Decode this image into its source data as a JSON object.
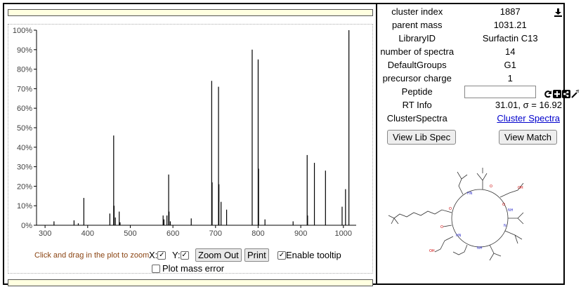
{
  "chart_data": {
    "type": "bar",
    "title": "",
    "xlabel": "",
    "ylabel": "",
    "xlim": [
      280,
      1030
    ],
    "ylim": [
      0,
      100
    ],
    "xticks": [
      300,
      400,
      500,
      600,
      700,
      800,
      900,
      1000
    ],
    "xtick_labels": [
      "300",
      "400",
      "500",
      "600",
      "700",
      "800",
      "900",
      "1000"
    ],
    "yticks": [
      0,
      10,
      20,
      30,
      40,
      50,
      60,
      70,
      80,
      90,
      100
    ],
    "ytick_labels": [
      "0%",
      "10%",
      "20%",
      "30%",
      "40%",
      "50%",
      "60%",
      "70%",
      "80%",
      "90%",
      "100%"
    ],
    "grid": false,
    "peaks": [
      {
        "x": 321,
        "y": 2
      },
      {
        "x": 368,
        "y": 2.5
      },
      {
        "x": 378,
        "y": 1
      },
      {
        "x": 391,
        "y": 14
      },
      {
        "x": 452,
        "y": 6
      },
      {
        "x": 461,
        "y": 46
      },
      {
        "x": 462,
        "y": 10
      },
      {
        "x": 465,
        "y": 4
      },
      {
        "x": 474,
        "y": 7
      },
      {
        "x": 476,
        "y": 1.5
      },
      {
        "x": 577,
        "y": 5
      },
      {
        "x": 579,
        "y": 3
      },
      {
        "x": 586,
        "y": 5
      },
      {
        "x": 590,
        "y": 26
      },
      {
        "x": 591,
        "y": 7
      },
      {
        "x": 594,
        "y": 2
      },
      {
        "x": 643,
        "y": 3.5
      },
      {
        "x": 691,
        "y": 74
      },
      {
        "x": 692,
        "y": 22
      },
      {
        "x": 707,
        "y": 71
      },
      {
        "x": 708,
        "y": 21
      },
      {
        "x": 713,
        "y": 12
      },
      {
        "x": 726,
        "y": 8
      },
      {
        "x": 786,
        "y": 90
      },
      {
        "x": 800,
        "y": 85
      },
      {
        "x": 801,
        "y": 29
      },
      {
        "x": 816,
        "y": 3
      },
      {
        "x": 882,
        "y": 2
      },
      {
        "x": 915,
        "y": 36
      },
      {
        "x": 916,
        "y": 5
      },
      {
        "x": 932,
        "y": 32
      },
      {
        "x": 958,
        "y": 28
      },
      {
        "x": 997,
        "y": 9.5
      },
      {
        "x": 1005,
        "y": 18.5
      },
      {
        "x": 1013,
        "y": 100
      }
    ]
  },
  "controls": {
    "hint": "Click and drag in the plot to zoom",
    "x_label": "X:",
    "y_label": "Y:",
    "x_checked": "✓",
    "y_checked": "✓",
    "zoom_out": "Zoom Out",
    "print": "Print",
    "tooltip_checked": "✓",
    "tooltip_label": "Enable tooltip",
    "mass_error_checked": "",
    "mass_error_label": "Plot mass error"
  },
  "meta": {
    "rows": [
      {
        "key": "cluster index",
        "value": "1887"
      },
      {
        "key": "parent mass",
        "value": "1031.21"
      },
      {
        "key": "LibraryID",
        "value": "Surfactin C13"
      },
      {
        "key": "number of spectra",
        "value": "14"
      },
      {
        "key": "DefaultGroups",
        "value": "G1"
      },
      {
        "key": "precursor charge",
        "value": "1"
      }
    ],
    "peptide_label": "Peptide",
    "peptide_value": "",
    "rt_label": "RT Info",
    "rt_value": "31.01, σ = 16.92",
    "cluster_label": "ClusterSpectra",
    "cluster_link": "Cluster Spectra",
    "view_lib_spec": "View Lib Spec",
    "view_match": "View Match"
  },
  "icons": [
    "download-icon",
    "refresh-icon",
    "plus-icon",
    "share-icon",
    "wand-icon"
  ]
}
